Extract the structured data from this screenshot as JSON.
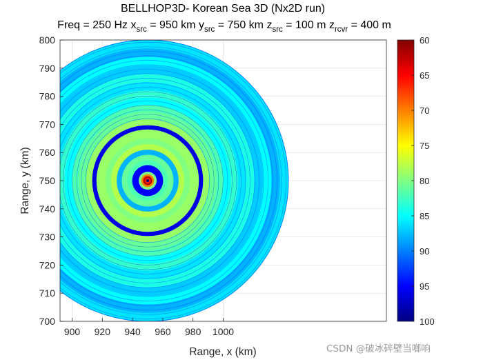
{
  "chart_data": {
    "type": "heatmap",
    "title": "BELLHOP3D- Korean Sea 3D (Nx2D run)",
    "subtitle": {
      "freq": "Freq = 250 Hz",
      "xsrc": {
        "symbol": "x",
        "sub": "src",
        "value": " = 950 km"
      },
      "ysrc": {
        "symbol": "y",
        "sub": "src",
        "value": " = 750 km"
      },
      "zsrc": {
        "symbol": "z",
        "sub": "src",
        "value": " = 100 m"
      },
      "zrcvr": {
        "symbol": "z",
        "sub": "rcvr",
        "value": " = 400 m"
      }
    },
    "xlabel": "Range, x (km)",
    "ylabel": "Range, y (km)",
    "xlim": [
      892,
      1108
    ],
    "ylim": [
      700,
      800
    ],
    "xticks": [
      900,
      920,
      940,
      960,
      980,
      1000
    ],
    "yticks": [
      700,
      710,
      720,
      730,
      740,
      750,
      760,
      770,
      780,
      790,
      800
    ],
    "grid": true,
    "colormap": "jet",
    "colorbar": {
      "min": 60,
      "max": 100,
      "reversed": true,
      "ticks": [
        60,
        65,
        70,
        75,
        80,
        85,
        90,
        95,
        100
      ]
    },
    "source": {
      "x": 950,
      "y": 750
    },
    "field_radius_km": 50,
    "transmission_loss_rings": [
      {
        "r": 0.5,
        "tl": 100
      },
      {
        "r": 1.0,
        "tl": 66
      },
      {
        "r": 1.6,
        "tl": 62
      },
      {
        "r": 2.3,
        "tl": 70
      },
      {
        "r": 3.2,
        "tl": 80
      },
      {
        "r": 5.5,
        "tl": 95
      },
      {
        "r": 7.2,
        "tl": 82
      },
      {
        "r": 9.2,
        "tl": 81
      },
      {
        "r": 11.0,
        "tl": 88
      },
      {
        "r": 13.0,
        "tl": 78
      },
      {
        "r": 15.0,
        "tl": 80
      },
      {
        "r": 18.2,
        "tl": 79
      },
      {
        "r": 19.7,
        "tl": 96
      },
      {
        "r": 21.8,
        "tl": 79
      },
      {
        "r": 24.5,
        "tl": 81
      },
      {
        "r": 27.0,
        "tl": 82
      },
      {
        "r": 29.5,
        "tl": 85
      },
      {
        "r": 32.0,
        "tl": 83
      },
      {
        "r": 35.0,
        "tl": 86
      },
      {
        "r": 38.0,
        "tl": 84
      },
      {
        "r": 41.0,
        "tl": 87
      },
      {
        "r": 44.0,
        "tl": 85
      },
      {
        "r": 47.0,
        "tl": 88
      },
      {
        "r": 50.0,
        "tl": 86
      }
    ]
  },
  "watermark": "CSDN @破冰碎壁当啷响"
}
